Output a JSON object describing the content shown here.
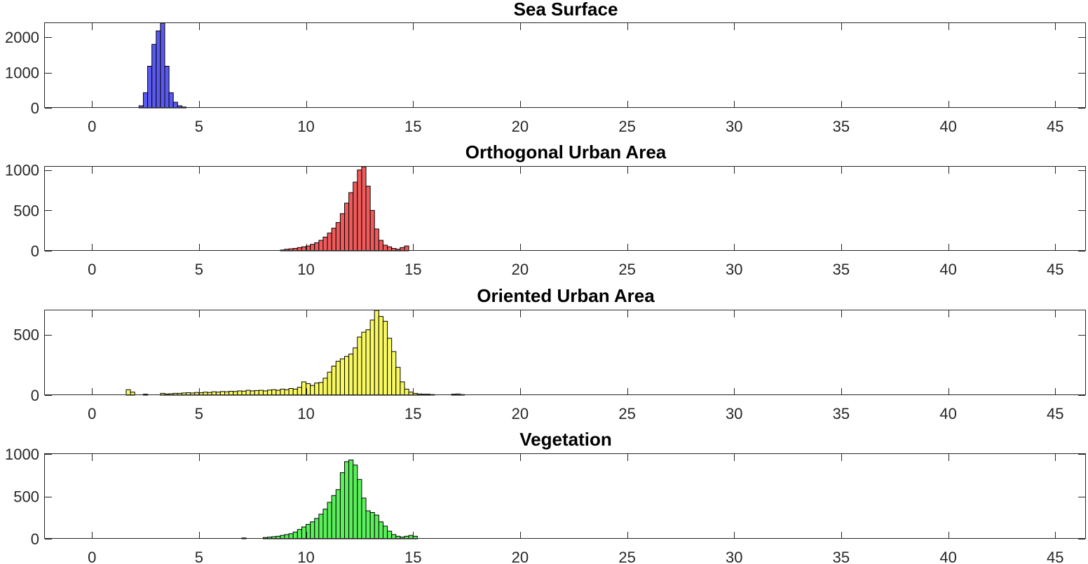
{
  "chart_data": [
    {
      "type": "bar",
      "title": "Sea Surface",
      "color": "#5a5af0",
      "xlim": [
        -2.2,
        46.4
      ],
      "ylim": [
        0,
        2400
      ],
      "xticks": [
        0,
        5,
        10,
        15,
        20,
        25,
        30,
        35,
        40,
        45
      ],
      "yticks": [
        0,
        1000,
        2000
      ],
      "bin_width": 0.2,
      "bins": [
        [
          2.2,
          60
        ],
        [
          2.4,
          430
        ],
        [
          2.6,
          1180
        ],
        [
          2.8,
          1800
        ],
        [
          3.0,
          2180
        ],
        [
          3.2,
          2400
        ],
        [
          3.4,
          1180
        ],
        [
          3.6,
          430
        ],
        [
          3.8,
          160
        ],
        [
          4.0,
          60
        ],
        [
          4.2,
          25
        ]
      ]
    },
    {
      "type": "bar",
      "title": "Orthogonal Urban Area",
      "color": "#f05a5a",
      "xlim": [
        -2.2,
        46.4
      ],
      "ylim": [
        0,
        1040
      ],
      "xticks": [
        0,
        5,
        10,
        15,
        20,
        25,
        30,
        35,
        40,
        45
      ],
      "yticks": [
        0,
        500,
        1000
      ],
      "bin_width": 0.2,
      "bins": [
        [
          8.8,
          10
        ],
        [
          9.0,
          20
        ],
        [
          9.2,
          25
        ],
        [
          9.4,
          30
        ],
        [
          9.6,
          40
        ],
        [
          9.8,
          50
        ],
        [
          10.0,
          60
        ],
        [
          10.2,
          80
        ],
        [
          10.4,
          100
        ],
        [
          10.6,
          130
        ],
        [
          10.8,
          170
        ],
        [
          11.0,
          220
        ],
        [
          11.2,
          280
        ],
        [
          11.4,
          350
        ],
        [
          11.6,
          460
        ],
        [
          11.8,
          590
        ],
        [
          12.0,
          720
        ],
        [
          12.2,
          850
        ],
        [
          12.4,
          1000
        ],
        [
          12.6,
          1040
        ],
        [
          12.8,
          800
        ],
        [
          13.0,
          500
        ],
        [
          13.2,
          270
        ],
        [
          13.4,
          130
        ],
        [
          13.6,
          70
        ],
        [
          13.8,
          50
        ],
        [
          14.0,
          30
        ],
        [
          14.2,
          20
        ],
        [
          14.4,
          40
        ],
        [
          14.6,
          60
        ]
      ]
    },
    {
      "type": "bar",
      "title": "Oriented Urban Area",
      "color": "#f8f860",
      "xlim": [
        -2.2,
        46.4
      ],
      "ylim": [
        0,
        700
      ],
      "xticks": [
        0,
        5,
        10,
        15,
        20,
        25,
        30,
        35,
        40,
        45
      ],
      "yticks": [
        0,
        500
      ],
      "bin_width": 0.2,
      "bins": [
        [
          1.6,
          45
        ],
        [
          1.8,
          25
        ],
        [
          2.4,
          8
        ],
        [
          3.2,
          15
        ],
        [
          3.4,
          10
        ],
        [
          3.6,
          12
        ],
        [
          3.8,
          15
        ],
        [
          4.0,
          15
        ],
        [
          4.2,
          18
        ],
        [
          4.4,
          20
        ],
        [
          4.6,
          18
        ],
        [
          4.8,
          22
        ],
        [
          5.0,
          20
        ],
        [
          5.2,
          25
        ],
        [
          5.4,
          22
        ],
        [
          5.6,
          28
        ],
        [
          5.8,
          25
        ],
        [
          6.0,
          30
        ],
        [
          6.2,
          28
        ],
        [
          6.4,
          32
        ],
        [
          6.6,
          30
        ],
        [
          6.8,
          35
        ],
        [
          7.0,
          33
        ],
        [
          7.2,
          40
        ],
        [
          7.4,
          35
        ],
        [
          7.6,
          38
        ],
        [
          7.8,
          40
        ],
        [
          8.0,
          35
        ],
        [
          8.2,
          42
        ],
        [
          8.4,
          45
        ],
        [
          8.6,
          40
        ],
        [
          8.8,
          50
        ],
        [
          9.0,
          45
        ],
        [
          9.2,
          55
        ],
        [
          9.4,
          50
        ],
        [
          9.6,
          65
        ],
        [
          9.8,
          110
        ],
        [
          10.0,
          95
        ],
        [
          10.2,
          80
        ],
        [
          10.4,
          100
        ],
        [
          10.6,
          105
        ],
        [
          10.8,
          140
        ],
        [
          11.0,
          190
        ],
        [
          11.2,
          240
        ],
        [
          11.4,
          280
        ],
        [
          11.6,
          300
        ],
        [
          11.8,
          320
        ],
        [
          12.0,
          340
        ],
        [
          12.2,
          390
        ],
        [
          12.4,
          480
        ],
        [
          12.6,
          520
        ],
        [
          12.8,
          540
        ],
        [
          13.0,
          620
        ],
        [
          13.2,
          700
        ],
        [
          13.4,
          650
        ],
        [
          13.6,
          610
        ],
        [
          13.8,
          470
        ],
        [
          14.0,
          360
        ],
        [
          14.2,
          230
        ],
        [
          14.4,
          110
        ],
        [
          14.6,
          50
        ],
        [
          14.8,
          25
        ],
        [
          15.0,
          15
        ],
        [
          15.2,
          10
        ],
        [
          15.4,
          8
        ],
        [
          15.6,
          8
        ],
        [
          15.8,
          5
        ],
        [
          16.8,
          8
        ],
        [
          17.0,
          10
        ],
        [
          17.2,
          5
        ]
      ]
    },
    {
      "type": "bar",
      "title": "Vegetation",
      "color": "#5af05a",
      "xlim": [
        -2.2,
        46.4
      ],
      "ylim": [
        0,
        1000
      ],
      "xticks": [
        0,
        5,
        10,
        15,
        20,
        25,
        30,
        35,
        40,
        45
      ],
      "yticks": [
        0,
        500,
        1000
      ],
      "bin_width": 0.2,
      "bins": [
        [
          7.0,
          10
        ],
        [
          8.0,
          15
        ],
        [
          8.2,
          20
        ],
        [
          8.4,
          25
        ],
        [
          8.6,
          30
        ],
        [
          8.8,
          40
        ],
        [
          9.0,
          50
        ],
        [
          9.2,
          60
        ],
        [
          9.4,
          80
        ],
        [
          9.6,
          110
        ],
        [
          9.8,
          140
        ],
        [
          10.0,
          170
        ],
        [
          10.2,
          200
        ],
        [
          10.4,
          240
        ],
        [
          10.6,
          290
        ],
        [
          10.8,
          350
        ],
        [
          11.0,
          430
        ],
        [
          11.2,
          510
        ],
        [
          11.4,
          580
        ],
        [
          11.6,
          780
        ],
        [
          11.8,
          910
        ],
        [
          12.0,
          930
        ],
        [
          12.2,
          870
        ],
        [
          12.4,
          700
        ],
        [
          12.6,
          480
        ],
        [
          12.8,
          330
        ],
        [
          13.0,
          310
        ],
        [
          13.2,
          280
        ],
        [
          13.4,
          200
        ],
        [
          13.6,
          150
        ],
        [
          13.8,
          90
        ],
        [
          14.0,
          50
        ],
        [
          14.2,
          30
        ],
        [
          14.4,
          20
        ],
        [
          14.6,
          30
        ],
        [
          14.8,
          40
        ],
        [
          15.0,
          30
        ]
      ]
    }
  ]
}
